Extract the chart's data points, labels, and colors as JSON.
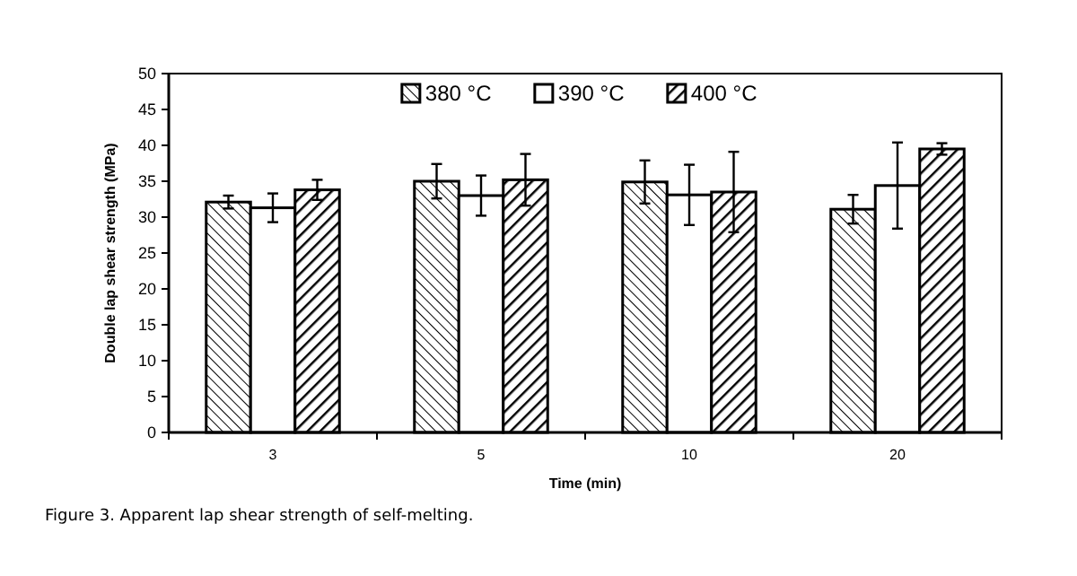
{
  "chart_data": {
    "type": "bar",
    "xlabel": "Time (min)",
    "ylabel": "Double lap shear strength (MPa)",
    "categories": [
      "3",
      "5",
      "10",
      "20"
    ],
    "series": [
      {
        "name": "380 °C",
        "color": "#000000",
        "values": [
          32.1,
          35.0,
          34.9,
          31.1
        ],
        "errors": [
          0.9,
          2.4,
          3.0,
          2.0
        ]
      },
      {
        "name": "390 °C",
        "color": "#ffffff",
        "values": [
          31.3,
          33.0,
          33.1,
          34.4
        ],
        "errors": [
          2.0,
          2.8,
          4.2,
          6.0
        ]
      },
      {
        "name": "400 °C",
        "color": "#000000",
        "values": [
          33.8,
          35.2,
          33.5,
          39.5
        ],
        "errors": [
          1.4,
          3.6,
          5.6,
          0.8
        ]
      }
    ],
    "ylim": [
      0,
      50
    ],
    "yticks": [
      0,
      5,
      10,
      15,
      20,
      25,
      30,
      35,
      40,
      45,
      50
    ],
    "grid": false,
    "legend": "top",
    "annotations": [
      "Figure 3. Apparent lap shear strength of self-melting."
    ]
  }
}
